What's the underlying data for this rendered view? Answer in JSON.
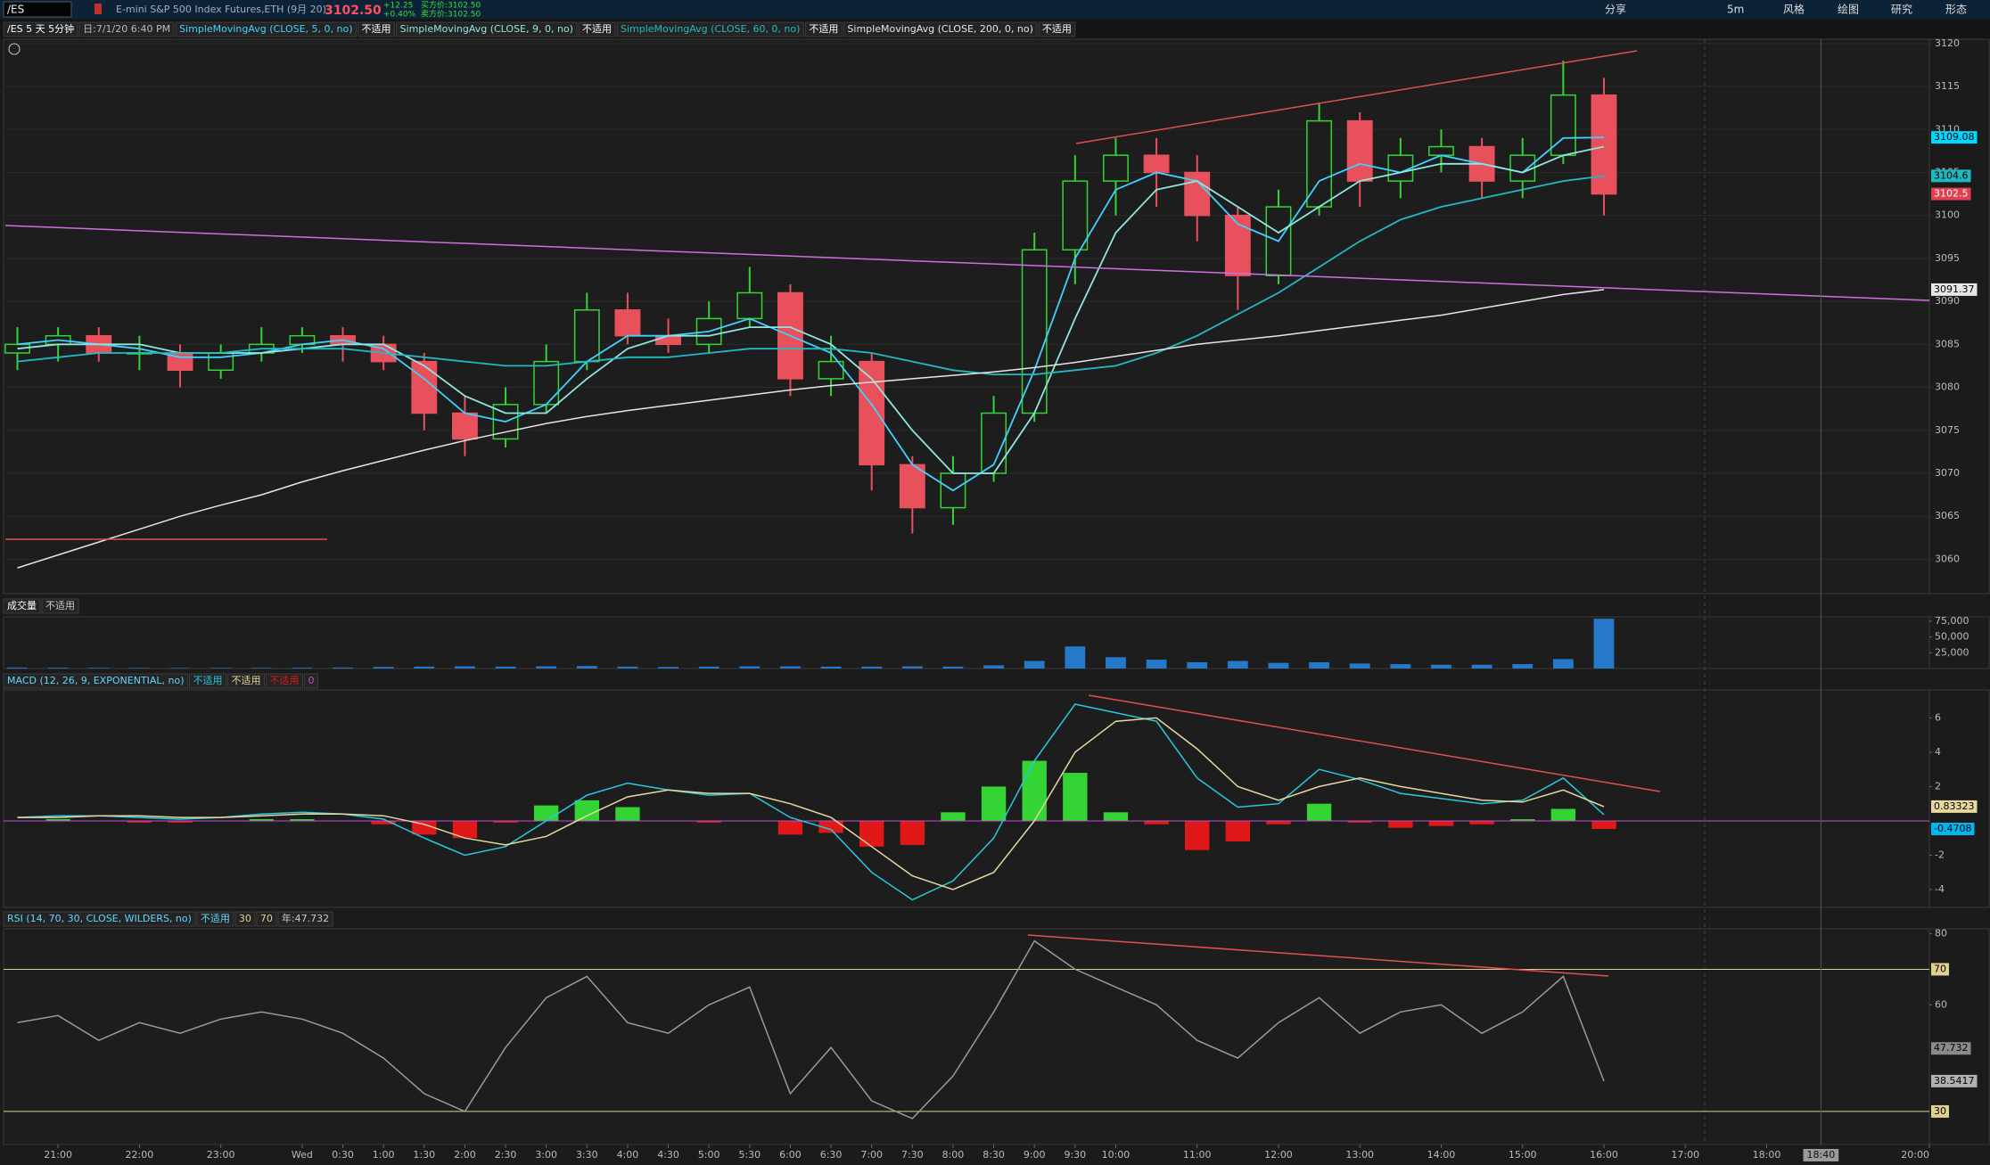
{
  "toolbar": {
    "symbol": "/ES",
    "description": "E-mini S&P 500 Index Futures,ETH (9月 20)",
    "last": "3102.50",
    "change": "+12.25",
    "change_pct": "+0.40%",
    "bid": "买方价:3102.50",
    "ask": "卖方价:3102.50",
    "buttons": [
      "分享",
      "5m",
      "风格",
      "绘图",
      "研究",
      "形态"
    ]
  },
  "time_axis": {
    "xlim": [
      0.33,
      24.0
    ],
    "x": [
      0.5,
      1,
      1.5,
      2,
      2.5,
      3,
      3.5,
      4,
      4.5,
      5,
      5.5,
      6,
      6.5,
      7,
      7.5,
      8,
      8.5,
      9,
      9.5,
      10,
      10.5,
      11,
      11.5,
      12,
      12.5,
      13,
      13.5,
      14,
      14.5,
      15,
      15.5,
      16,
      16.5,
      17,
      17.5,
      18,
      18.5,
      19,
      19.5,
      20
    ],
    "xticks": [
      {
        "value": 1,
        "label": "21:00"
      },
      {
        "value": 2,
        "label": "22:00"
      },
      {
        "value": 3,
        "label": "23:00"
      },
      {
        "value": 4,
        "label": "Wed"
      },
      {
        "value": 4.5,
        "label": "0:30"
      },
      {
        "value": 5,
        "label": "1:00"
      },
      {
        "value": 5.5,
        "label": "1:30"
      },
      {
        "value": 6,
        "label": "2:00"
      },
      {
        "value": 6.5,
        "label": "2:30"
      },
      {
        "value": 7,
        "label": "3:00"
      },
      {
        "value": 7.5,
        "label": "3:30"
      },
      {
        "value": 8,
        "label": "4:00"
      },
      {
        "value": 8.5,
        "label": "4:30"
      },
      {
        "value": 9,
        "label": "5:00"
      },
      {
        "value": 9.5,
        "label": "5:30"
      },
      {
        "value": 10,
        "label": "6:00"
      },
      {
        "value": 10.5,
        "label": "6:30"
      },
      {
        "value": 11,
        "label": "7:00"
      },
      {
        "value": 11.5,
        "label": "7:30"
      },
      {
        "value": 12,
        "label": "8:00"
      },
      {
        "value": 12.5,
        "label": "8:30"
      },
      {
        "value": 13,
        "label": "9:00"
      },
      {
        "value": 13.5,
        "label": "9:30"
      },
      {
        "value": 14,
        "label": "10:00"
      },
      {
        "value": 15,
        "label": "11:00"
      },
      {
        "value": 16,
        "label": "12:00"
      },
      {
        "value": 17,
        "label": "13:00"
      },
      {
        "value": 18,
        "label": "14:00"
      },
      {
        "value": 19,
        "label": "15:00"
      },
      {
        "value": 20,
        "label": "16:00"
      },
      {
        "value": 21,
        "label": "17:00"
      },
      {
        "value": 22,
        "label": "18:00"
      },
      {
        "value": 24,
        "label": "20:00"
      }
    ],
    "cursor": {
      "value": 22.667,
      "label": "18:40"
    }
  },
  "chart_data": [
    {
      "type": "candlestick",
      "title": "/ES 5 天 5分钟",
      "date_label": "日:7/1/20 6:40 PM",
      "up_color": "#33d433",
      "down_color": "#e8505b",
      "open": [
        3084,
        3085,
        3086,
        3084,
        3084,
        3082,
        3084,
        3085,
        3086,
        3085,
        3083,
        3077,
        3074,
        3078,
        3083,
        3089,
        3086,
        3085,
        3088,
        3091,
        3081,
        3083,
        3071,
        3066,
        3070,
        3077,
        3096,
        3104,
        3107,
        3105,
        3100,
        3093,
        3101,
        3111,
        3104,
        3107,
        3108,
        3104,
        3107,
        3114
      ],
      "high": [
        3087,
        3087,
        3087,
        3086,
        3085,
        3085,
        3087,
        3087,
        3087,
        3086,
        3084,
        3079,
        3080,
        3085,
        3091,
        3091,
        3088,
        3090,
        3094,
        3092,
        3086,
        3084,
        3072,
        3072,
        3079,
        3098,
        3107,
        3109,
        3109,
        3107,
        3101,
        3103,
        3113,
        3112,
        3109,
        3110,
        3109,
        3109,
        3118,
        3116
      ],
      "low": [
        3082,
        3083,
        3083,
        3082,
        3080,
        3081,
        3083,
        3084,
        3083,
        3082,
        3075,
        3072,
        3073,
        3077,
        3082,
        3085,
        3084,
        3084,
        3087,
        3079,
        3079,
        3068,
        3063,
        3064,
        3069,
        3076,
        3092,
        3100,
        3101,
        3097,
        3089,
        3092,
        3100,
        3101,
        3102,
        3105,
        3102,
        3102,
        3106,
        3100
      ],
      "close": [
        3085,
        3086,
        3084,
        3084,
        3082,
        3084,
        3085,
        3086,
        3085,
        3083,
        3077,
        3074,
        3078,
        3083,
        3089,
        3086,
        3085,
        3088,
        3091,
        3081,
        3083,
        3071,
        3066,
        3070,
        3077,
        3096,
        3104,
        3107,
        3105,
        3100,
        3093,
        3101,
        3111,
        3104,
        3107,
        3108,
        3104,
        3107,
        3114,
        3102.5
      ],
      "series": [
        {
          "name": "SimpleMovingAvg (CLOSE, 5, 0, no)",
          "status": "不适用",
          "color": "#3fd2ff",
          "values": [
            3085,
            3085.5,
            3085,
            3084.5,
            3083.5,
            3083.5,
            3084,
            3085,
            3085.5,
            3084.5,
            3081,
            3077,
            3076,
            3078,
            3083,
            3086,
            3086,
            3086.5,
            3088,
            3086,
            3084,
            3078,
            3071,
            3068,
            3071,
            3082,
            3095,
            3103,
            3105,
            3104,
            3099,
            3097,
            3104,
            3106,
            3105,
            3107,
            3106,
            3105,
            3109,
            3109.08
          ]
        },
        {
          "name": "SimpleMovingAvg (CLOSE, 9, 0, no)",
          "status": "不适用",
          "color": "#8fe6e0",
          "values": [
            3084.5,
            3085,
            3085,
            3085,
            3084,
            3084,
            3084,
            3084.5,
            3085,
            3085,
            3082.5,
            3079,
            3077,
            3077,
            3081,
            3084.5,
            3086,
            3086,
            3087,
            3087,
            3085,
            3081,
            3075,
            3070,
            3070,
            3077,
            3088,
            3098,
            3103,
            3104,
            3101,
            3098,
            3101,
            3104,
            3105,
            3106,
            3106,
            3105,
            3107,
            3108
          ]
        },
        {
          "name": "SimpleMovingAvg (CLOSE, 60, 0, no)",
          "status": "不适用",
          "color": "#22b9c4",
          "values": [
            3083,
            3083.5,
            3084,
            3084,
            3084,
            3084,
            3084.5,
            3084.5,
            3084.5,
            3084,
            3083.5,
            3083,
            3082.5,
            3082.5,
            3083,
            3083.5,
            3083.5,
            3084,
            3084.5,
            3084.5,
            3084.5,
            3084,
            3083,
            3082,
            3081.5,
            3081.5,
            3082,
            3082.5,
            3084,
            3086,
            3088.5,
            3091,
            3094,
            3097,
            3099.5,
            3101,
            3102,
            3103,
            3104,
            3104.6
          ]
        },
        {
          "name": "SimpleMovingAvg (CLOSE, 200, 0, no)",
          "status": "不适用",
          "color": "#e6e6e6",
          "values": [
            3059,
            3060.5,
            3062,
            3063.5,
            3065,
            3066.3,
            3067.5,
            3069,
            3070.3,
            3071.5,
            3072.7,
            3073.8,
            3074.8,
            3075.8,
            3076.6,
            3077.3,
            3077.9,
            3078.5,
            3079.1,
            3079.7,
            3080.2,
            3080.6,
            3081,
            3081.4,
            3081.8,
            3082.3,
            3082.9,
            3083.6,
            3084.3,
            3085,
            3085.5,
            3086,
            3086.6,
            3087.2,
            3087.8,
            3088.4,
            3089.2,
            3090,
            3090.8,
            3091.37
          ]
        }
      ],
      "ylim": [
        3056,
        3120.5
      ],
      "yticks": [
        3060,
        3065,
        3070,
        3075,
        3080,
        3085,
        3090,
        3095,
        3100,
        3105,
        3110,
        3115,
        3120
      ],
      "last_value_tags": [
        {
          "value": 3109.08,
          "color": "#00d8ff"
        },
        {
          "value": 3104.6,
          "color": "#20b8c0"
        },
        {
          "value": 3102.5,
          "color": "#e04050"
        },
        {
          "value": 3091.37,
          "color": "#e6e6e6"
        }
      ]
    },
    {
      "type": "bar",
      "title": "成交量",
      "status": "不适用",
      "color": "#2678c8",
      "values": [
        1500,
        1200,
        1000,
        900,
        800,
        900,
        1000,
        1200,
        1500,
        2500,
        3000,
        3500,
        3000,
        3500,
        4000,
        3000,
        2500,
        3000,
        3500,
        3500,
        3000,
        3000,
        3500,
        3000,
        5000,
        12000,
        35000,
        18000,
        14000,
        10000,
        12000,
        9000,
        10000,
        8000,
        7000,
        6000,
        6000,
        7000,
        15000,
        79000
      ],
      "ylim": [
        0,
        82000
      ],
      "yticks": [
        {
          "value": 25000,
          "label": "25,000"
        },
        {
          "value": 50000,
          "label": "50,000"
        },
        {
          "value": 75000,
          "label": "75,000"
        }
      ]
    },
    {
      "type": "macd",
      "title": "MACD (12, 26, 9, EXPONENTIAL, no)",
      "zero_line": 0,
      "series": [
        {
          "status": "不适用",
          "color": "#27c9e0",
          "values": [
            0.2,
            0.3,
            0.3,
            0.2,
            0.1,
            0.2,
            0.4,
            0.5,
            0.4,
            0.1,
            -1,
            -2,
            -1.5,
            0,
            1.5,
            2.2,
            1.8,
            1.5,
            1.6,
            0.2,
            -0.5,
            -3,
            -4.6,
            -3.5,
            -1,
            3.5,
            6.8,
            6.3,
            5.8,
            2.5,
            0.8,
            1,
            3,
            2.4,
            1.6,
            1.3,
            1,
            1.2,
            2.5,
            0.36
          ]
        },
        {
          "status": "不适用",
          "color": "#e8d8a0",
          "values": [
            0.2,
            0.2,
            0.3,
            0.3,
            0.2,
            0.2,
            0.3,
            0.4,
            0.4,
            0.3,
            -0.2,
            -1,
            -1.4,
            -0.9,
            0.3,
            1.4,
            1.8,
            1.6,
            1.6,
            1,
            0.2,
            -1.5,
            -3.2,
            -4,
            -3,
            0,
            4,
            5.8,
            6,
            4.2,
            2,
            1.2,
            2,
            2.5,
            2,
            1.6,
            1.2,
            1.1,
            1.8,
            0.83
          ]
        }
      ],
      "histogram": {
        "status": "不适用",
        "up_color": "#33d433",
        "down_color": "#e01818",
        "values": [
          0,
          0.1,
          0,
          -0.1,
          -0.1,
          0,
          0.1,
          0.1,
          0,
          -0.2,
          -0.8,
          -1,
          -0.1,
          0.9,
          1.2,
          0.8,
          0,
          -0.1,
          0,
          -0.8,
          -0.7,
          -1.5,
          -1.4,
          0.5,
          2,
          3.5,
          2.8,
          0.5,
          -0.2,
          -1.7,
          -1.2,
          -0.2,
          1,
          -0.1,
          -0.4,
          -0.3,
          -0.2,
          0.1,
          0.7,
          -0.47
        ]
      },
      "ylim": [
        -5.04,
        7.63
      ],
      "yticks": [
        -4,
        -2,
        2,
        4,
        6
      ],
      "last_value_tags": [
        {
          "value": 0.83323,
          "color": "#e8d8a0"
        },
        {
          "value": -0.4708,
          "color": "#00b8f0"
        }
      ]
    },
    {
      "type": "rsi",
      "title": "RSI (14, 70, 30, CLOSE, WILDERS, no)",
      "status": "不适用",
      "readout": "年:47.732",
      "overbought": 70,
      "oversold": 30,
      "color": "#9a9a9a",
      "level_color": "#e0d090",
      "values": [
        55,
        57,
        50,
        55,
        52,
        56,
        58,
        56,
        52,
        45,
        35,
        30,
        48,
        62,
        68,
        55,
        52,
        60,
        65,
        35,
        48,
        33,
        28,
        40,
        58,
        78,
        70,
        65,
        60,
        50,
        45,
        55,
        62,
        52,
        58,
        60,
        52,
        58,
        68,
        38.5417
      ],
      "ylim": [
        20.7,
        81.4
      ],
      "yticks": [
        60,
        80
      ],
      "last_value_tags": [
        {
          "value": 47.732,
          "color": "#8a8a8a"
        },
        {
          "value": 38.5417,
          "color": "#b0b0b0"
        }
      ]
    }
  ]
}
